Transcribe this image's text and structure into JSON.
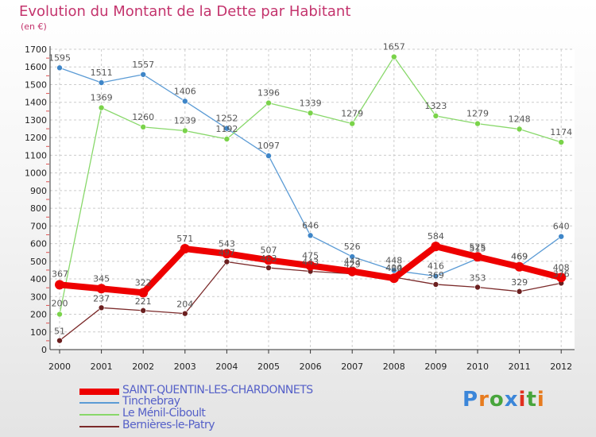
{
  "title": "Evolution du Montant de la Dette par Habitant",
  "unit": "(en €)",
  "brand": "Proxiti",
  "colors": {
    "title": "#c4346d",
    "legend_text": "#5560c8"
  },
  "chart_data": {
    "type": "line",
    "title": "Evolution du Montant de la Dette par Habitant",
    "subtitle": "(en €)",
    "xlabel": "",
    "ylabel": "",
    "categories": [
      "2000",
      "2001",
      "2002",
      "2003",
      "2004",
      "2005",
      "2006",
      "2007",
      "2008",
      "2009",
      "2010",
      "2011",
      "2012"
    ],
    "ylim": [
      0,
      1700
    ],
    "yticks": [
      0,
      100,
      200,
      300,
      400,
      500,
      600,
      700,
      800,
      900,
      1000,
      1100,
      1200,
      1300,
      1400,
      1500,
      1600,
      1700
    ],
    "grid": true,
    "legend_position": "bottom-left",
    "series": [
      {
        "name": "SAINT-QUENTIN-LES-CHARDONNETS",
        "color": "#ee0000",
        "marker": "#ee0000",
        "values": [
          367,
          345,
          322,
          571,
          543,
          507,
          475,
          443,
          404,
          584,
          525,
          469,
          408
        ]
      },
      {
        "name": "Tinchebray",
        "color": "#5b9bd5",
        "marker": "#3f86c8",
        "values": [
          1595,
          1511,
          1557,
          1406,
          1252,
          1097,
          646,
          526,
          448,
          416,
          515,
          469,
          640
        ]
      },
      {
        "name": "Le Ménil-Ciboult",
        "color": "#88d86a",
        "marker": "#7ad34a",
        "values": [
          200,
          1369,
          1260,
          1239,
          1192,
          1396,
          1339,
          1279,
          1657,
          1323,
          1279,
          1248,
          1174
        ]
      },
      {
        "name": "Bernières-le-Patry",
        "color": "#7b2a2a",
        "marker": "#6b1f1f",
        "values": [
          51,
          237,
          221,
          204,
          497,
          463,
          443,
          429,
          410,
          369,
          353,
          329,
          376
        ]
      }
    ]
  }
}
